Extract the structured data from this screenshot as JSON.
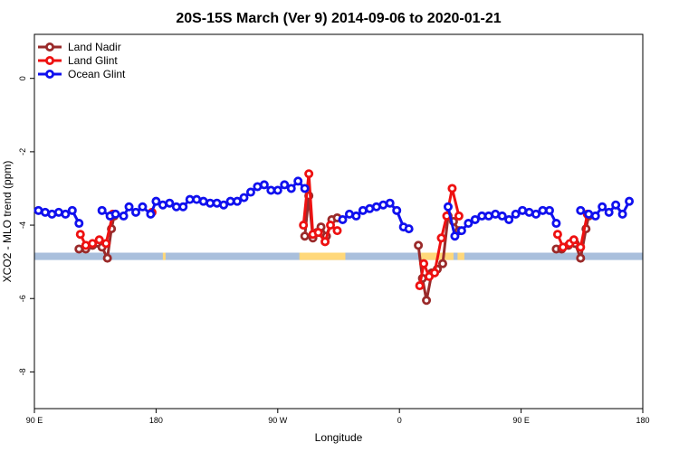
{
  "chart_data": {
    "type": "line",
    "title": "20S-15S March (Ver 9)   2014-09-06 to 2020-01-21",
    "xlabel": "Longitude",
    "ylabel": "XCO2 - MLO trend (ppm)",
    "xlim": [
      90,
      540
    ],
    "ylim": [
      -9,
      1.2
    ],
    "x_ticks": [
      {
        "value": 90,
        "label": "90 E"
      },
      {
        "value": 180,
        "label": "180"
      },
      {
        "value": 270,
        "label": "90 W"
      },
      {
        "value": 360,
        "label": "0"
      },
      {
        "value": 450,
        "label": "90 E"
      },
      {
        "value": 540,
        "label": "180"
      }
    ],
    "y_ticks": [
      {
        "value": 0,
        "label": "0"
      },
      {
        "value": -2,
        "label": "-2"
      },
      {
        "value": -4,
        "label": "-4"
      },
      {
        "value": -6,
        "label": "-6"
      },
      {
        "value": -8,
        "label": "-8"
      }
    ],
    "legend_position": "top-left",
    "background_band": {
      "y_range": [
        -4.75,
        -4.95
      ],
      "ocean_color": "#a9bfdc",
      "land_color": "#ffd87a",
      "land_segments": [
        [
          185,
          187
        ],
        [
          286,
          320
        ],
        [
          376,
          400
        ],
        [
          403,
          408
        ]
      ]
    },
    "series": [
      {
        "name": "Land Nadir",
        "color": "#9a2a2a",
        "points": [
          [
            123,
            -4.65
          ],
          [
            128,
            -4.65
          ],
          [
            133,
            -4.55
          ],
          [
            140,
            -4.6
          ],
          [
            144,
            -4.9
          ],
          [
            147,
            -4.1
          ],
          [
            149,
            -3.75
          ],
          [
            290,
            -4.3
          ],
          [
            293,
            -3.2
          ],
          [
            296,
            -4.35
          ],
          [
            299,
            -4.2
          ],
          [
            302,
            -4.05
          ],
          [
            306,
            -4.3
          ],
          [
            310,
            -3.85
          ],
          [
            314,
            -3.8
          ],
          [
            374,
            -4.55
          ],
          [
            377,
            -5.45
          ],
          [
            380,
            -6.05
          ],
          [
            384,
            -5.3
          ],
          [
            388,
            -5.2
          ],
          [
            392,
            -5.05
          ],
          [
            396,
            -3.75
          ],
          [
            400,
            -3.9
          ],
          [
            404,
            -4.15
          ],
          [
            476,
            -4.65
          ],
          [
            480,
            -4.65
          ],
          [
            485,
            -4.55
          ],
          [
            490,
            -4.5
          ],
          [
            494,
            -4.9
          ],
          [
            498,
            -4.1
          ],
          [
            500,
            -3.75
          ]
        ]
      },
      {
        "name": "Land Glint",
        "color": "#ee1111",
        "points": [
          [
            124,
            -4.25
          ],
          [
            128,
            -4.55
          ],
          [
            133,
            -4.5
          ],
          [
            138,
            -4.4
          ],
          [
            143,
            -4.5
          ],
          [
            148,
            -3.7
          ],
          [
            177,
            -3.65
          ],
          [
            289,
            -4.0
          ],
          [
            293,
            -2.6
          ],
          [
            296,
            -4.25
          ],
          [
            300,
            -4.2
          ],
          [
            305,
            -4.45
          ],
          [
            309,
            -4.0
          ],
          [
            314,
            -4.15
          ],
          [
            375,
            -5.65
          ],
          [
            378,
            -5.05
          ],
          [
            382,
            -5.4
          ],
          [
            386,
            -5.3
          ],
          [
            391,
            -4.35
          ],
          [
            395,
            -3.75
          ],
          [
            399,
            -3.0
          ],
          [
            404,
            -3.75
          ],
          [
            477,
            -4.25
          ],
          [
            481,
            -4.6
          ],
          [
            486,
            -4.5
          ],
          [
            489,
            -4.4
          ],
          [
            494,
            -4.6
          ],
          [
            499,
            -3.7
          ]
        ]
      },
      {
        "name": "Ocean Glint",
        "color": "#1010ee",
        "points": [
          [
            93,
            -3.6
          ],
          [
            98,
            -3.65
          ],
          [
            103,
            -3.7
          ],
          [
            108,
            -3.65
          ],
          [
            113,
            -3.7
          ],
          [
            118,
            -3.6
          ],
          [
            123,
            -3.95
          ],
          [
            140,
            -3.6
          ],
          [
            146,
            -3.75
          ],
          [
            150,
            -3.7
          ],
          [
            156,
            -3.75
          ],
          [
            160,
            -3.5
          ],
          [
            165,
            -3.65
          ],
          [
            170,
            -3.5
          ],
          [
            176,
            -3.7
          ],
          [
            180,
            -3.35
          ],
          [
            185,
            -3.45
          ],
          [
            190,
            -3.4
          ],
          [
            195,
            -3.5
          ],
          [
            200,
            -3.5
          ],
          [
            205,
            -3.3
          ],
          [
            210,
            -3.3
          ],
          [
            215,
            -3.35
          ],
          [
            220,
            -3.4
          ],
          [
            225,
            -3.4
          ],
          [
            230,
            -3.45
          ],
          [
            235,
            -3.35
          ],
          [
            240,
            -3.35
          ],
          [
            245,
            -3.25
          ],
          [
            250,
            -3.1
          ],
          [
            255,
            -2.95
          ],
          [
            260,
            -2.9
          ],
          [
            265,
            -3.05
          ],
          [
            270,
            -3.05
          ],
          [
            275,
            -2.9
          ],
          [
            280,
            -3.0
          ],
          [
            285,
            -2.8
          ],
          [
            290,
            -3.0
          ],
          [
            318,
            -3.85
          ],
          [
            323,
            -3.7
          ],
          [
            328,
            -3.75
          ],
          [
            333,
            -3.6
          ],
          [
            338,
            -3.55
          ],
          [
            343,
            -3.5
          ],
          [
            348,
            -3.45
          ],
          [
            353,
            -3.4
          ],
          [
            358,
            -3.6
          ],
          [
            363,
            -4.05
          ],
          [
            367,
            -4.1
          ],
          [
            396,
            -3.5
          ],
          [
            401,
            -4.3
          ],
          [
            406,
            -4.15
          ],
          [
            411,
            -3.95
          ],
          [
            416,
            -3.85
          ],
          [
            421,
            -3.75
          ],
          [
            426,
            -3.75
          ],
          [
            431,
            -3.7
          ],
          [
            436,
            -3.75
          ],
          [
            441,
            -3.85
          ],
          [
            446,
            -3.7
          ],
          [
            451,
            -3.6
          ],
          [
            456,
            -3.65
          ],
          [
            461,
            -3.7
          ],
          [
            466,
            -3.6
          ],
          [
            471,
            -3.6
          ],
          [
            476,
            -3.95
          ],
          [
            494,
            -3.6
          ],
          [
            500,
            -3.7
          ],
          [
            505,
            -3.75
          ],
          [
            510,
            -3.5
          ],
          [
            515,
            -3.65
          ],
          [
            520,
            -3.45
          ],
          [
            525,
            -3.7
          ],
          [
            530,
            -3.35
          ]
        ]
      }
    ]
  }
}
